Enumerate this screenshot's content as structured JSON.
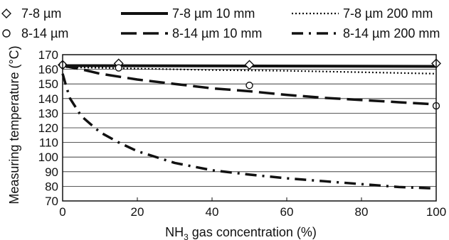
{
  "chart_data": {
    "type": "line",
    "xlabel": "NH3 gas concentration (%)",
    "xlabel_parts": {
      "pre": "NH",
      "sub": "3",
      "post": " gas concentration (%)"
    },
    "ylabel": "Measuring temperature (°C)",
    "xlim": [
      0,
      100
    ],
    "ylim": [
      70,
      170
    ],
    "xticks": [
      "0",
      "20",
      "40",
      "60",
      "80",
      "100"
    ],
    "yticks": [
      "70",
      "80",
      "90",
      "100",
      "110",
      "120",
      "130",
      "140",
      "150",
      "160",
      "170"
    ],
    "grid": "horizontal",
    "legend_position": "top",
    "series": [
      {
        "name": "7-8 µm",
        "style": "diamond-marker",
        "x": [
          0,
          15,
          50,
          100
        ],
        "y": [
          163,
          164,
          163,
          164
        ]
      },
      {
        "name": "8-14 µm",
        "style": "circle-marker",
        "x": [
          0,
          15,
          50,
          100
        ],
        "y": [
          163,
          161,
          149,
          135
        ]
      },
      {
        "name": "7-8 µm 10 mm",
        "style": "solid",
        "x": [
          0,
          100
        ],
        "y": [
          162.5,
          162
        ]
      },
      {
        "name": "8-14 µm 10 mm",
        "style": "dashed",
        "x": [
          0,
          1,
          5,
          10,
          20,
          30,
          40,
          50,
          60,
          70,
          80,
          90,
          100
        ],
        "y": [
          163,
          162,
          160,
          157,
          153,
          150,
          147,
          145,
          142.5,
          140.5,
          139,
          137.5,
          136
        ]
      },
      {
        "name": "7-8 µm 200 mm",
        "style": "dotted",
        "x": [
          0,
          20,
          40,
          60,
          80,
          100
        ],
        "y": [
          161.5,
          160.5,
          159.5,
          159,
          158,
          157
        ]
      },
      {
        "name": "8-14 µm 200 mm",
        "style": "dash-dot",
        "x": [
          0,
          1,
          2,
          5,
          10,
          15,
          20,
          30,
          40,
          50,
          60,
          70,
          80,
          90,
          100
        ],
        "y": [
          157,
          148,
          140,
          128,
          117,
          110,
          104,
          96,
          91,
          88,
          85.5,
          83.5,
          81.5,
          79.5,
          78.5
        ]
      }
    ]
  }
}
